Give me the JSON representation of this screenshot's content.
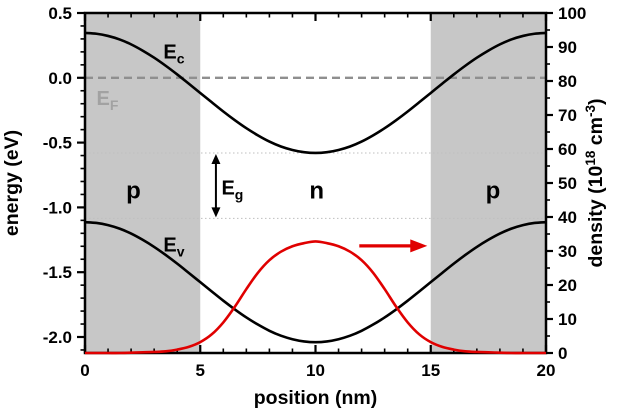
{
  "figure": {
    "background": "#ffffff",
    "frame_color": "#000000",
    "region_shade_color": "#c7c7c7"
  },
  "chart_data": {
    "type": "line",
    "title": "",
    "xlabel": "position (nm)",
    "ylabel_left": "energy (eV)",
    "ylabel_right_segments": [
      {
        "text": "density (10"
      },
      {
        "text": "18",
        "sup": true
      },
      {
        "text": " cm"
      },
      {
        "text": "-3",
        "sup": true
      },
      {
        "text": ")"
      }
    ],
    "xlim": [
      0,
      20
    ],
    "ylim_left": [
      -2.1235,
      0.5
    ],
    "ylim_right": [
      0,
      100
    ],
    "grid": false,
    "legend": "none",
    "x_major_ticks": [
      0,
      5,
      10,
      15,
      20
    ],
    "x_tick_labels": [
      "0",
      "5",
      "10",
      "15",
      "20"
    ],
    "x_minor_step": 1,
    "y_left_major_ticks": [
      0.5,
      0.0,
      -0.5,
      -1.0,
      -1.5,
      -2.0
    ],
    "y_left_tick_labels": [
      "0.5",
      "0.0",
      "-0.5",
      "-1.0",
      "-1.5",
      "-2.0"
    ],
    "y_left_minor_step": 0.1,
    "y_right_major_ticks": [
      100,
      90,
      80,
      70,
      60,
      50,
      40,
      30,
      20,
      10,
      0
    ],
    "y_right_tick_labels": [
      "100",
      "90",
      "80",
      "70",
      "60",
      "50",
      "40",
      "30",
      "20",
      "10",
      "0"
    ],
    "y_right_minor_step": 5,
    "shaded_regions": [
      {
        "from": 0,
        "to": 5
      },
      {
        "from": 15,
        "to": 20
      }
    ],
    "region_labels": [
      {
        "text": "p",
        "x": 2.1,
        "energy": -0.87
      },
      {
        "text": "n",
        "x": 10.05,
        "energy": -0.87
      },
      {
        "text": "p",
        "x": 17.7,
        "energy": -0.87
      }
    ],
    "fermi_line": {
      "energy": 0.0,
      "style": "dashed",
      "color": "#8f8f8f",
      "label_main": "E",
      "label_sub": "F",
      "label_x": 0.5,
      "label_energy": -0.21,
      "label_color": "#a2a2a2"
    },
    "reference_lines": {
      "color": "#bfbfbf",
      "energies": [
        -0.58,
        -1.085
      ]
    },
    "band_gap_arrow": {
      "x": 5.68,
      "from_energy": -0.58,
      "to_energy": -1.085,
      "color": "#000000",
      "label_main": "E",
      "label_sub": "g",
      "label_x": 5.92,
      "label_energy": -0.9
    },
    "density_arrow": {
      "color": "#e00000",
      "from_x": 11.9,
      "to_x": 14.85,
      "density": 31.5
    },
    "x": [
      0,
      0.5,
      1,
      1.5,
      2,
      2.5,
      3,
      3.5,
      4,
      4.5,
      5,
      5.5,
      6,
      6.5,
      7,
      7.5,
      8,
      8.5,
      9,
      9.5,
      10,
      10.5,
      11,
      11.5,
      12,
      12.5,
      13,
      13.5,
      14,
      14.5,
      15,
      15.5,
      16,
      16.5,
      17,
      17.5,
      18,
      18.5,
      19,
      19.5,
      20
    ],
    "series": [
      {
        "name": "conduction-band",
        "label_main": "E",
        "label_sub": "c",
        "label_x": 3.4,
        "label_energy": 0.15,
        "axis": "left",
        "color": "#000000",
        "values": [
          0.346,
          0.34,
          0.323,
          0.296,
          0.258,
          0.21,
          0.155,
          0.093,
          0.026,
          -0.045,
          -0.117,
          -0.189,
          -0.26,
          -0.327,
          -0.389,
          -0.444,
          -0.492,
          -0.53,
          -0.557,
          -0.574,
          -0.58,
          -0.574,
          -0.557,
          -0.53,
          -0.492,
          -0.444,
          -0.389,
          -0.327,
          -0.26,
          -0.189,
          -0.117,
          -0.045,
          0.026,
          0.093,
          0.155,
          0.21,
          0.258,
          0.296,
          0.323,
          0.34,
          0.346
        ]
      },
      {
        "name": "valence-band",
        "label_main": "E",
        "label_sub": "v",
        "label_x": 3.4,
        "label_energy": -1.34,
        "axis": "left",
        "color": "#000000",
        "values": [
          -1.114,
          -1.12,
          -1.137,
          -1.164,
          -1.202,
          -1.25,
          -1.305,
          -1.367,
          -1.434,
          -1.505,
          -1.577,
          -1.649,
          -1.72,
          -1.787,
          -1.849,
          -1.904,
          -1.952,
          -1.99,
          -2.017,
          -2.034,
          -2.04,
          -2.034,
          -2.017,
          -1.99,
          -1.952,
          -1.904,
          -1.849,
          -1.787,
          -1.72,
          -1.649,
          -1.577,
          -1.505,
          -1.434,
          -1.367,
          -1.305,
          -1.25,
          -1.202,
          -1.164,
          -1.137,
          -1.12,
          -1.114
        ]
      },
      {
        "name": "charge-density",
        "axis": "right",
        "color": "#e00000",
        "values": [
          0.0,
          0.0,
          0.0,
          0.0,
          0.1,
          0.2,
          0.3,
          0.5,
          1.0,
          1.8,
          3.2,
          5.5,
          9.0,
          13.6,
          18.8,
          23.6,
          27.3,
          29.8,
          31.4,
          32.3,
          32.8,
          32.3,
          31.4,
          29.8,
          27.3,
          23.6,
          18.8,
          13.6,
          9.0,
          5.5,
          3.2,
          1.8,
          1.0,
          0.5,
          0.3,
          0.2,
          0.1,
          0.0,
          0.0,
          0.0,
          0.0
        ]
      }
    ]
  }
}
